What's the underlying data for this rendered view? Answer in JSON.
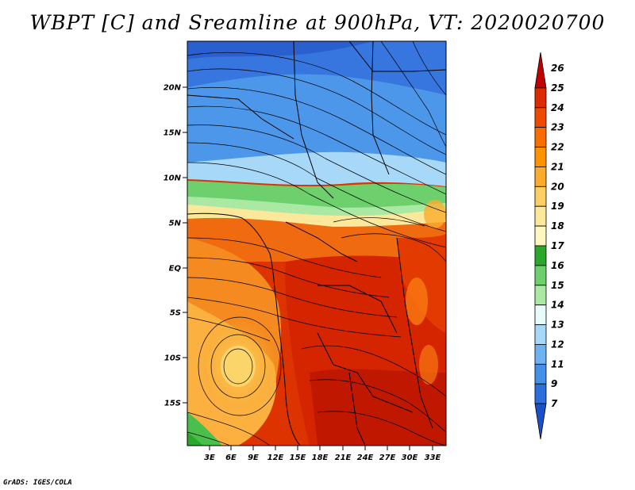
{
  "title": "WBPT [C] and Sreamline at 900hPa, VT: 2020020700",
  "footer": "GrADS: IGES/COLA",
  "map": {
    "lat_labels": [
      "20N",
      "15N",
      "10N",
      "5N",
      "EQ",
      "5S",
      "10S",
      "15S"
    ],
    "lon_labels": [
      "3E",
      "6E",
      "9E",
      "12E",
      "15E",
      "18E",
      "21E",
      "24E",
      "27E",
      "30E",
      "33E"
    ]
  },
  "colorbar": {
    "levels": [
      "26",
      "25",
      "24",
      "23",
      "22",
      "21",
      "20",
      "19",
      "18",
      "17",
      "16",
      "15",
      "14",
      "13",
      "12",
      "11",
      "9",
      "7"
    ],
    "colors": [
      "#c00000",
      "#dd2a00",
      "#f04a00",
      "#fa6d00",
      "#ff9200",
      "#fbac2d",
      "#fbcf62",
      "#fbe89a",
      "#fff6c2",
      "#2ba82b",
      "#6dd06d",
      "#a9e9a3",
      "#e6fbfb",
      "#a8d8f8",
      "#6fb2f2",
      "#4391e8",
      "#2a6fdc",
      "#1a50c8"
    ]
  }
}
